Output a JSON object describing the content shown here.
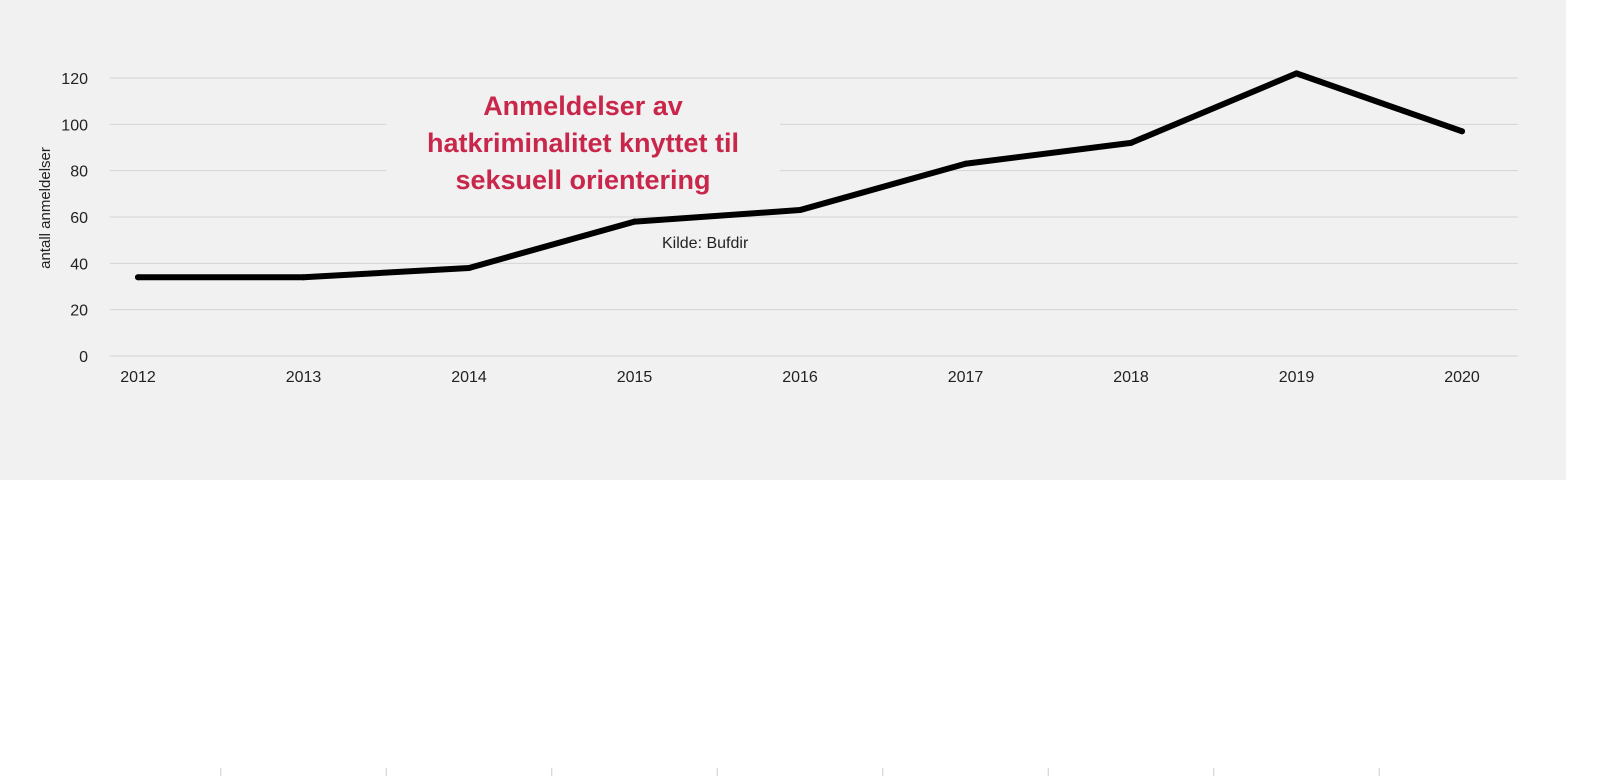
{
  "chart_data": {
    "type": "line",
    "title_lines": [
      "Anmeldelser av",
      "hatkriminalitet knyttet til",
      "seksuell orientering"
    ],
    "source": "Kilde: Bufdir",
    "xlabel": "",
    "ylabel": "antall anmeldelser",
    "x": [
      "2012",
      "2013",
      "2014",
      "2015",
      "2016",
      "2017",
      "2018",
      "2019",
      "2020"
    ],
    "values": [
      34,
      34,
      38,
      58,
      63,
      83,
      92,
      122,
      97
    ],
    "ylim": [
      0,
      120
    ],
    "yticks": [
      0,
      20,
      40,
      60,
      80,
      100,
      120
    ],
    "grid": true,
    "legend": "none"
  },
  "colors": {
    "panel_background": "#f2f1f1",
    "line": "#000000",
    "title": "#c8264a",
    "gridline": "#d4d4d4"
  }
}
